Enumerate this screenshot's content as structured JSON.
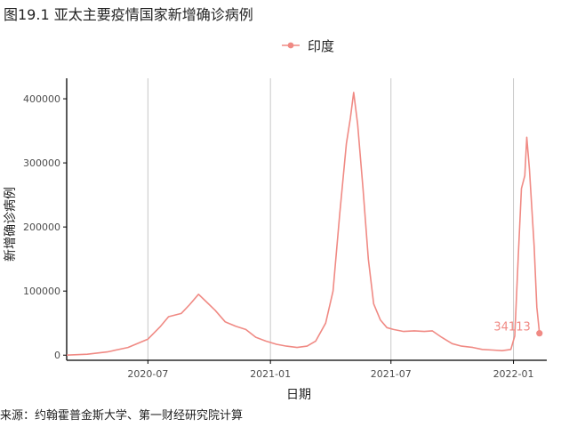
{
  "figure": {
    "title": "图19.1 亚太主要疫情国家新增确诊病例",
    "source": "来源：约翰霍普金斯大学、第一财经研究院计算"
  },
  "colors": {
    "series": "#F08A84",
    "grid": "#C8C8C8",
    "axis": "#000000"
  },
  "chart_data": {
    "type": "line",
    "title": "",
    "xlabel": "日期",
    "ylabel": "新增确诊病例",
    "x_ticks": [
      "2020-07",
      "2021-01",
      "2021-07",
      "2022-01"
    ],
    "y_ticks": [
      0,
      100000,
      200000,
      300000,
      400000
    ],
    "y_tick_labels": [
      "0",
      "100000",
      "200000",
      "300000",
      "400000"
    ],
    "xlim": [
      "2020-03-01",
      "2022-02-20"
    ],
    "ylim": [
      -8000,
      432000
    ],
    "grid": "vertical major lines only",
    "legend_position": "top",
    "series": [
      {
        "name": "印度",
        "x": [
          "2020-03-01",
          "2020-04-01",
          "2020-05-01",
          "2020-06-01",
          "2020-07-01",
          "2020-07-20",
          "2020-08-01",
          "2020-08-20",
          "2020-09-01",
          "2020-09-15",
          "2020-09-25",
          "2020-10-10",
          "2020-10-25",
          "2020-11-10",
          "2020-11-25",
          "2020-12-10",
          "2020-12-25",
          "2021-01-10",
          "2021-01-25",
          "2021-02-10",
          "2021-02-25",
          "2021-03-10",
          "2021-03-25",
          "2021-04-05",
          "2021-04-15",
          "2021-04-25",
          "2021-05-01",
          "2021-05-06",
          "2021-05-12",
          "2021-05-20",
          "2021-05-28",
          "2021-06-05",
          "2021-06-15",
          "2021-06-25",
          "2021-07-05",
          "2021-07-20",
          "2021-08-05",
          "2021-08-20",
          "2021-09-01",
          "2021-09-15",
          "2021-10-01",
          "2021-10-15",
          "2021-11-01",
          "2021-11-15",
          "2021-12-01",
          "2021-12-15",
          "2021-12-28",
          "2022-01-03",
          "2022-01-08",
          "2022-01-13",
          "2022-01-18",
          "2022-01-21",
          "2022-01-25",
          "2022-02-01",
          "2022-02-05",
          "2022-02-09"
        ],
        "values": [
          0,
          1500,
          5000,
          12000,
          25000,
          45000,
          60000,
          65000,
          78000,
          95000,
          85000,
          70000,
          52000,
          45000,
          40000,
          28000,
          22000,
          17000,
          14000,
          12000,
          14000,
          22000,
          50000,
          100000,
          220000,
          330000,
          370000,
          410000,
          360000,
          260000,
          150000,
          80000,
          55000,
          43000,
          40000,
          37000,
          38000,
          37000,
          38000,
          28000,
          18000,
          14000,
          12000,
          9000,
          8000,
          7000,
          9000,
          30000,
          150000,
          260000,
          280000,
          340000,
          290000,
          170000,
          75000,
          34113
        ]
      }
    ],
    "annotations": [
      {
        "text": "34113",
        "x": "2022-02-09",
        "y": 34113
      }
    ]
  }
}
